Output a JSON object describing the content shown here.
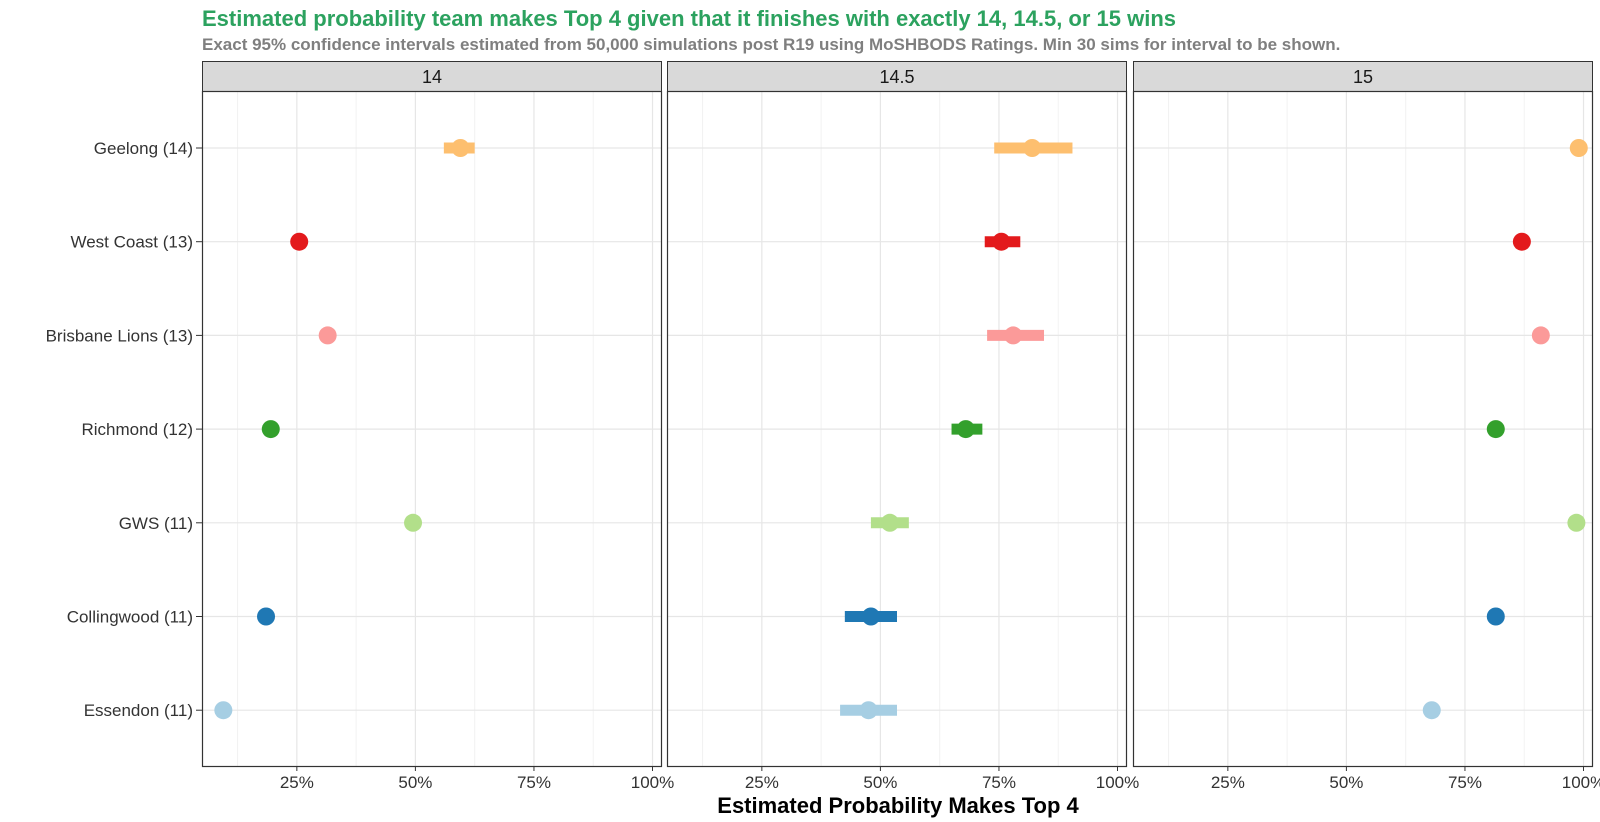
{
  "chart_data": {
    "type": "scatter",
    "title": "Estimated probability team makes Top 4 given that it finishes with exactly 14, 14.5, or 15 wins",
    "subtitle": "Exact 95% confidence intervals estimated from 50,000 simulations post R19 using MoSHBODS Ratings. Min 30 sims for interval to be shown.",
    "xlabel": "Estimated Probability Makes Top 4",
    "ylabel": "",
    "xlim": [
      0.05,
      1.02
    ],
    "x_ticks": [
      0.25,
      0.5,
      0.75,
      1.0
    ],
    "x_tick_labels": [
      "25%",
      "50%",
      "75%",
      "100%"
    ],
    "grid": true,
    "legend": "none",
    "title_color": "#2ca25f",
    "subtitle_color": "#7f7f7f",
    "categories": [
      "Geelong (14)",
      "West Coast (13)",
      "Brisbane Lions (13)",
      "Richmond (12)",
      "GWS (11)",
      "Collingwood (11)",
      "Essendon (11)"
    ],
    "colors": [
      "#fdbf6f",
      "#e31a1c",
      "#fb9a99",
      "#33a02c",
      "#b2df8a",
      "#1f78b4",
      "#a6cee3"
    ],
    "panels": [
      {
        "name": "14",
        "series": [
          {
            "team": "Geelong (14)",
            "estimate": 0.595,
            "lower": 0.56,
            "upper": 0.625
          },
          {
            "team": "West Coast (13)",
            "estimate": 0.255,
            "lower": null,
            "upper": null
          },
          {
            "team": "Brisbane Lions (13)",
            "estimate": 0.315,
            "lower": null,
            "upper": null
          },
          {
            "team": "Richmond (12)",
            "estimate": 0.195,
            "lower": null,
            "upper": null
          },
          {
            "team": "GWS (11)",
            "estimate": 0.495,
            "lower": null,
            "upper": null
          },
          {
            "team": "Collingwood (11)",
            "estimate": 0.185,
            "lower": null,
            "upper": null
          },
          {
            "team": "Essendon (11)",
            "estimate": 0.095,
            "lower": null,
            "upper": null
          }
        ]
      },
      {
        "name": "14.5",
        "series": [
          {
            "team": "Geelong (14)",
            "estimate": 0.82,
            "lower": 0.74,
            "upper": 0.905
          },
          {
            "team": "West Coast (13)",
            "estimate": 0.755,
            "lower": 0.72,
            "upper": 0.795
          },
          {
            "team": "Brisbane Lions (13)",
            "estimate": 0.78,
            "lower": 0.725,
            "upper": 0.845
          },
          {
            "team": "Richmond (12)",
            "estimate": 0.68,
            "lower": 0.65,
            "upper": 0.715
          },
          {
            "team": "GWS (11)",
            "estimate": 0.52,
            "lower": 0.48,
            "upper": 0.56
          },
          {
            "team": "Collingwood (11)",
            "estimate": 0.48,
            "lower": 0.425,
            "upper": 0.535
          },
          {
            "team": "Essendon (11)",
            "estimate": 0.475,
            "lower": 0.415,
            "upper": 0.535
          }
        ]
      },
      {
        "name": "15",
        "series": [
          {
            "team": "Geelong (14)",
            "estimate": 0.99,
            "lower": null,
            "upper": null
          },
          {
            "team": "West Coast (13)",
            "estimate": 0.87,
            "lower": null,
            "upper": null
          },
          {
            "team": "Brisbane Lions (13)",
            "estimate": 0.91,
            "lower": null,
            "upper": null
          },
          {
            "team": "Richmond (12)",
            "estimate": 0.815,
            "lower": null,
            "upper": null
          },
          {
            "team": "GWS (11)",
            "estimate": 0.985,
            "lower": null,
            "upper": null
          },
          {
            "team": "Collingwood (11)",
            "estimate": 0.815,
            "lower": null,
            "upper": null
          },
          {
            "team": "Essendon (11)",
            "estimate": 0.68,
            "lower": null,
            "upper": null
          }
        ]
      }
    ]
  }
}
